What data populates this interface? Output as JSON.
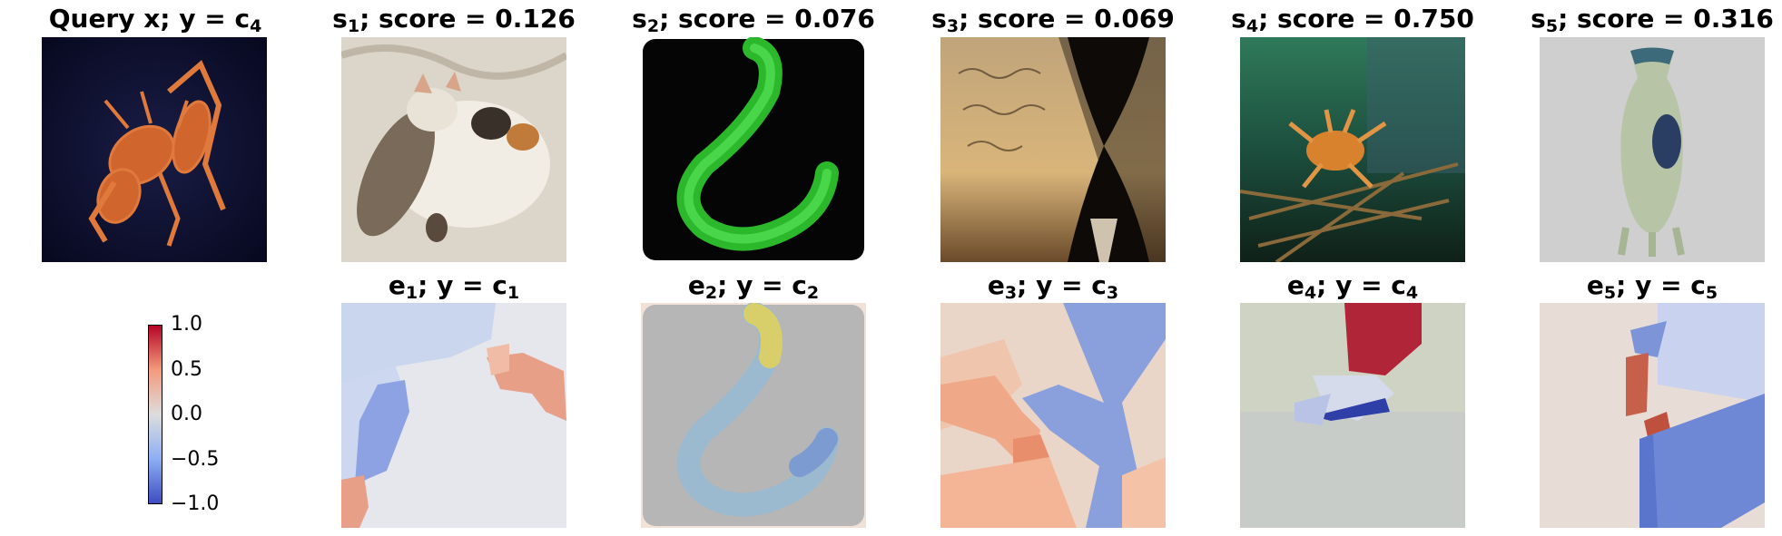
{
  "top_row": [
    {
      "title_main": "Query x; y = c",
      "title_sub": "4",
      "image": "spiky-orange-crab-on-dark-background"
    },
    {
      "title_main": "s",
      "title_sub": "1",
      "title_rest": "; score = 0.126",
      "image": "calico-cat-sleeping-on-blanket"
    },
    {
      "title_main": "s",
      "title_sub": "2",
      "title_rest": "; score = 0.076",
      "image": "green-fluorescent-worm"
    },
    {
      "title_main": "s",
      "title_sub": "3",
      "title_rest": "; score = 0.069",
      "image": "hourglass-with-script-text"
    },
    {
      "title_main": "s",
      "title_sub": "4",
      "title_rest": "; score = 0.750",
      "image": "crab-on-branches-underwater"
    },
    {
      "title_main": "s",
      "title_sub": "5",
      "title_rest": "; score = 0.316",
      "image": "ceramic-vase"
    }
  ],
  "bottom_row": [
    {
      "title_main": "e",
      "title_sub": "1",
      "title_rest": "; y = c",
      "title_sub2": "1"
    },
    {
      "title_main": "e",
      "title_sub": "2",
      "title_rest": "; y = c",
      "title_sub2": "2"
    },
    {
      "title_main": "e",
      "title_sub": "3",
      "title_rest": "; y = c",
      "title_sub2": "3"
    },
    {
      "title_main": "e",
      "title_sub": "4",
      "title_rest": "; y = c",
      "title_sub2": "4"
    },
    {
      "title_main": "e",
      "title_sub": "5",
      "title_rest": "; y = c",
      "title_sub2": "5"
    }
  ],
  "colorbar": {
    "ticks": [
      "1.0",
      "0.5",
      "0.0",
      "−0.5",
      "−1.0"
    ],
    "colormap": "coolwarm",
    "colors": {
      "high": "#b40426",
      "mid": "#dddddd",
      "low": "#3b4cc0"
    }
  }
}
